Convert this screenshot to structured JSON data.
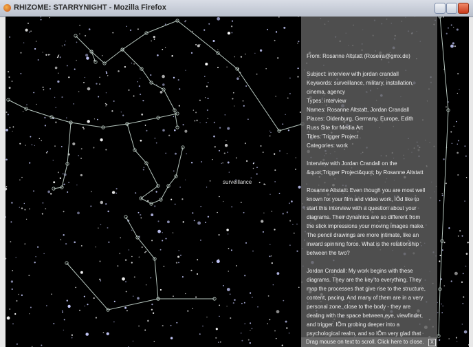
{
  "window": {
    "title": "RHIZOME: STARRYNIGHT - Mozilla Firefox"
  },
  "sky": {
    "label": "surveillance"
  },
  "panel": {
    "body": [
      [
        "From: Rosanne Altstatt (Roseira@gmx.de)"
      ],
      [
        "Subject: interview with jordan crandall",
        "Keywords: surveillance, military, installation,",
        "cinema, agency",
        "Types: interview",
        "Names: Rosanne Altstatt, Jordan Crandall",
        "Places: Oldenburg, Germany, Europe, Edith",
        "Russ Site for Media Art",
        "Titles: Trigger Project",
        "Categories: work"
      ],
      [
        "Interview with Jordan Crandall on the",
        "&quot;Trigger Project&quot; by Rosanne Altstatt"
      ],
      [
        "Rosanne Altstatt: Even though you are most well",
        "known for your film and video work, IÕd like to",
        "start this interview with a question about your",
        "diagrams. Their dynamics are so different from",
        "the slick impressions your moving images make.",
        "The pencil drawings are more intimate, like an",
        "inward spinning force. What is the relationship",
        "between the two?"
      ],
      [
        "Jordan Crandall: My work begins with these",
        "diagrams. They are the key to everything. They",
        "map the processes that give rise to the structure,",
        "content, pacing. And many of them are in a very",
        "personal zone, close to the body - they are",
        "dealing with the space between eye, viewfinder,",
        "and trigger. IÕm probing deeper into a",
        "psychological realm, and so IÕm very glad that"
      ]
    ],
    "footer": "Drag mouse on text to scroll. Click here to close.",
    "close": "X"
  }
}
